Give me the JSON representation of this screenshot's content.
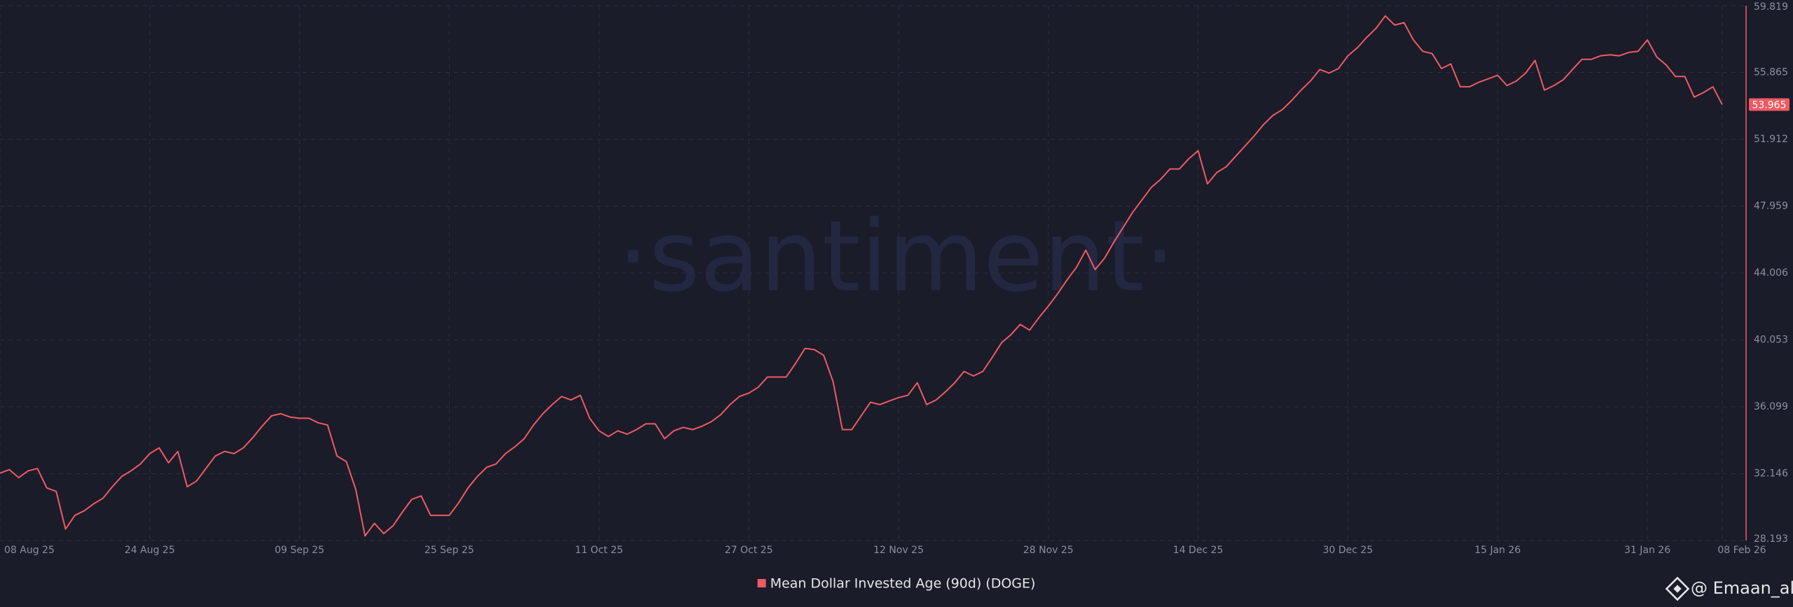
{
  "chart_data": {
    "type": "line",
    "watermark": "·santiment·",
    "credit": "@ Emaan_ali",
    "grid": true,
    "x": [
      "2025-08-08",
      "2025-08-09",
      "2025-08-10",
      "2025-08-11",
      "2025-08-12",
      "2025-08-13",
      "2025-08-14",
      "2025-08-15",
      "2025-08-16",
      "2025-08-17",
      "2025-08-18",
      "2025-08-19",
      "2025-08-20",
      "2025-08-21",
      "2025-08-22",
      "2025-08-23",
      "2025-08-24",
      "2025-08-25",
      "2025-08-26",
      "2025-08-27",
      "2025-08-28",
      "2025-08-29",
      "2025-08-30",
      "2025-08-31",
      "2025-09-01",
      "2025-09-02",
      "2025-09-03",
      "2025-09-04",
      "2025-09-05",
      "2025-09-06",
      "2025-09-07",
      "2025-09-08",
      "2025-09-09",
      "2025-09-10",
      "2025-09-11",
      "2025-09-12",
      "2025-09-13",
      "2025-09-14",
      "2025-09-15",
      "2025-09-16",
      "2025-09-17",
      "2025-09-18",
      "2025-09-19",
      "2025-09-20",
      "2025-09-21",
      "2025-09-22",
      "2025-09-23",
      "2025-09-24",
      "2025-09-25",
      "2025-09-26",
      "2025-09-27",
      "2025-09-28",
      "2025-09-29",
      "2025-09-30",
      "2025-10-01",
      "2025-10-02",
      "2025-10-03",
      "2025-10-04",
      "2025-10-05",
      "2025-10-06",
      "2025-10-07",
      "2025-10-08",
      "2025-10-09",
      "2025-10-10",
      "2025-10-11",
      "2025-10-12",
      "2025-10-13",
      "2025-10-14",
      "2025-10-15",
      "2025-10-16",
      "2025-10-17",
      "2025-10-18",
      "2025-10-19",
      "2025-10-20",
      "2025-10-21",
      "2025-10-22",
      "2025-10-23",
      "2025-10-24",
      "2025-10-25",
      "2025-10-26",
      "2025-10-27",
      "2025-10-28",
      "2025-10-29",
      "2025-10-30",
      "2025-10-31",
      "2025-11-01",
      "2025-11-02",
      "2025-11-03",
      "2025-11-04",
      "2025-11-05",
      "2025-11-06",
      "2025-11-07",
      "2025-11-08",
      "2025-11-09",
      "2025-11-10",
      "2025-11-11",
      "2025-11-12",
      "2025-11-13",
      "2025-11-14",
      "2025-11-15",
      "2025-11-16",
      "2025-11-17",
      "2025-11-18",
      "2025-11-19",
      "2025-11-20",
      "2025-11-21",
      "2025-11-22",
      "2025-11-23",
      "2025-11-24",
      "2025-11-25",
      "2025-11-26",
      "2025-11-27",
      "2025-11-28",
      "2025-11-29",
      "2025-11-30",
      "2025-12-01",
      "2025-12-02",
      "2025-12-03",
      "2025-12-04",
      "2025-12-05",
      "2025-12-06",
      "2025-12-07",
      "2025-12-08",
      "2025-12-09",
      "2025-12-10",
      "2025-12-11",
      "2025-12-12",
      "2025-12-13",
      "2025-12-14",
      "2025-12-15",
      "2025-12-16",
      "2025-12-17",
      "2025-12-18",
      "2025-12-19",
      "2025-12-20",
      "2025-12-21",
      "2025-12-22",
      "2025-12-23",
      "2025-12-24",
      "2025-12-25",
      "2025-12-26",
      "2025-12-27",
      "2025-12-28",
      "2025-12-29",
      "2025-12-30",
      "2025-12-31",
      "2026-01-01",
      "2026-01-02",
      "2026-01-03",
      "2026-01-04",
      "2026-01-05",
      "2026-01-06",
      "2026-01-07",
      "2026-01-08",
      "2026-01-09",
      "2026-01-10",
      "2026-01-11",
      "2026-01-12",
      "2026-01-13",
      "2026-01-14",
      "2026-01-15",
      "2026-01-16",
      "2026-01-17",
      "2026-01-18",
      "2026-01-19",
      "2026-01-20",
      "2026-01-21",
      "2026-01-22",
      "2026-01-23",
      "2026-01-24",
      "2026-01-25",
      "2026-01-26",
      "2026-01-27",
      "2026-01-28",
      "2026-01-29",
      "2026-01-30",
      "2026-01-31",
      "2026-02-01",
      "2026-02-02",
      "2026-02-03",
      "2026-02-04",
      "2026-02-05",
      "2026-02-06",
      "2026-02-07",
      "2026-02-08"
    ],
    "series": [
      {
        "name": "Mean Dollar Invested Age (90d) (DOGE)",
        "color": "#ef5a63",
        "values": [
          32.18,
          32.38,
          31.91,
          32.31,
          32.45,
          31.3,
          31.1,
          28.87,
          29.68,
          29.95,
          30.36,
          30.69,
          31.37,
          31.98,
          32.31,
          32.72,
          33.33,
          33.67,
          32.79,
          33.46,
          31.37,
          31.71,
          32.45,
          33.19,
          33.46,
          33.33,
          33.67,
          34.27,
          34.95,
          35.56,
          35.69,
          35.49,
          35.42,
          35.42,
          35.15,
          35.02,
          33.19,
          32.86,
          31.23,
          28.46,
          29.21,
          28.6,
          29.07,
          29.88,
          30.63,
          30.83,
          29.68,
          29.68,
          29.68,
          30.42,
          31.3,
          31.98,
          32.52,
          32.72,
          33.33,
          33.73,
          34.21,
          35.02,
          35.69,
          36.23,
          36.71,
          36.5,
          36.78,
          35.42,
          34.68,
          34.34,
          34.68,
          34.48,
          34.75,
          35.09,
          35.09,
          34.21,
          34.68,
          34.88,
          34.75,
          34.95,
          35.22,
          35.63,
          36.23,
          36.71,
          36.91,
          37.25,
          37.86,
          37.86,
          37.86,
          38.67,
          39.55,
          39.48,
          39.14,
          37.59,
          34.75,
          34.75,
          35.56,
          36.37,
          36.23,
          36.44,
          36.64,
          36.78,
          37.52,
          36.23,
          36.5,
          36.98,
          37.52,
          38.19,
          37.92,
          38.19,
          39.01,
          39.88,
          40.36,
          40.97,
          40.63,
          41.37,
          42.05,
          42.79,
          43.6,
          44.34,
          45.36,
          44.21,
          44.88,
          45.83,
          46.71,
          47.59,
          48.33,
          49.07,
          49.55,
          50.16,
          50.16,
          50.76,
          51.24,
          49.28,
          49.95,
          50.29,
          50.9,
          51.51,
          52.12,
          52.79,
          53.33,
          53.67,
          54.21,
          54.82,
          55.36,
          56.04,
          55.83,
          56.1,
          56.85,
          57.32,
          57.93,
          58.47,
          59.21,
          58.67,
          58.81,
          57.79,
          57.12,
          56.98,
          56.1,
          56.37,
          55.02,
          55.02,
          55.29,
          55.49,
          55.7,
          55.09,
          55.36,
          55.83,
          56.58,
          54.82,
          55.09,
          55.43,
          56.04,
          56.64,
          56.64,
          56.85,
          56.91,
          56.85,
          57.05,
          57.12,
          57.79,
          56.78,
          56.31,
          55.63,
          55.63,
          54.41,
          54.68,
          55.02,
          53.965
        ]
      }
    ],
    "xlim": [
      "2025-08-08",
      "2026-02-08"
    ],
    "xticks": [
      {
        "value": "2025-08-08",
        "label": "08 Aug 25"
      },
      {
        "value": "2025-08-24",
        "label": "24 Aug 25"
      },
      {
        "value": "2025-09-09",
        "label": "09 Sep 25"
      },
      {
        "value": "2025-09-25",
        "label": "25 Sep 25"
      },
      {
        "value": "2025-10-11",
        "label": "11 Oct 25"
      },
      {
        "value": "2025-10-27",
        "label": "27 Oct 25"
      },
      {
        "value": "2025-11-12",
        "label": "12 Nov 25"
      },
      {
        "value": "2025-11-28",
        "label": "28 Nov 25"
      },
      {
        "value": "2025-12-14",
        "label": "14 Dec 25"
      },
      {
        "value": "2025-12-30",
        "label": "30 Dec 25"
      },
      {
        "value": "2026-01-15",
        "label": "15 Jan 26"
      },
      {
        "value": "2026-01-31",
        "label": "31 Jan 26"
      },
      {
        "value": "2026-02-08",
        "label": "08 Feb 26"
      }
    ],
    "ylim": [
      28.193,
      59.819
    ],
    "yticks": [
      28.193,
      32.146,
      36.099,
      40.053,
      44.006,
      47.959,
      51.912,
      55.865,
      59.819
    ]
  }
}
